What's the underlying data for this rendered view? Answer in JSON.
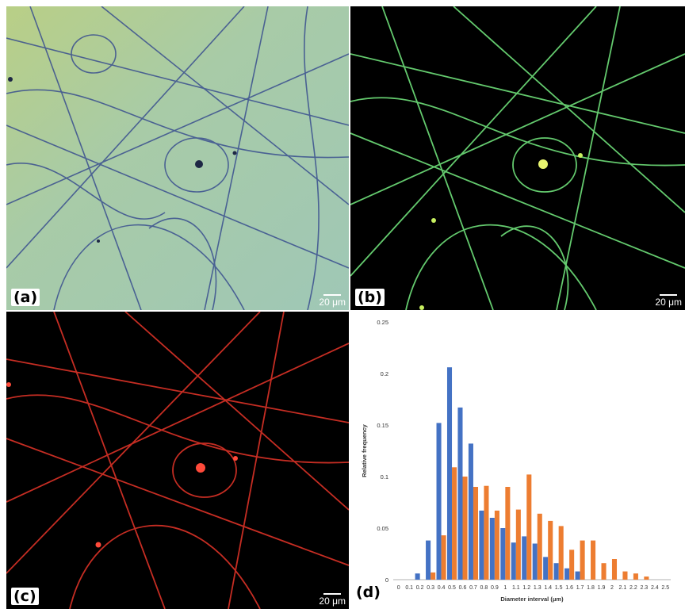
{
  "panels": {
    "a": {
      "label": "(a)",
      "scale_bar": "20 μm"
    },
    "b": {
      "label": "(b)",
      "scale_bar": "20 μm"
    },
    "c": {
      "label": "(c)",
      "scale_bar": "20 μm"
    },
    "d": {
      "label": "(d)"
    }
  },
  "colors": {
    "panel_a_background": "#a8c9a6",
    "panel_a_fiber": "#3a4f8f",
    "panel_b_fiber": "#6fe07a",
    "panel_c_fiber": "#e8362a",
    "series_blue": "#4472c4",
    "series_orange": "#ed7d31"
  },
  "chart_data": {
    "type": "bar",
    "xlabel": "Diameter interval (μm)",
    "ylabel": "Relative frequency",
    "ylim": [
      0,
      0.25
    ],
    "yticks": [
      "0",
      "0.05",
      "0.1",
      "0.15",
      "0.2",
      "0.25"
    ],
    "grid": false,
    "legend": "none",
    "categories": [
      "0",
      "0.1",
      "0.2",
      "0.3",
      "0.4",
      "0.5",
      "0.6",
      "0.7",
      "0.8",
      "0.9",
      "1",
      "1.1",
      "1.2",
      "1.3",
      "1.4",
      "1.5",
      "1.6",
      "1.7",
      "1.8",
      "1.9",
      "2",
      "2.1",
      "2.2",
      "2.3",
      "2.4",
      "2.5"
    ],
    "series": [
      {
        "color": "#4472c4",
        "values": [
          0,
          0,
          0.006,
          0.038,
          0.152,
          0.206,
          0.167,
          0.132,
          0.067,
          0.06,
          0.05,
          0.036,
          0.042,
          0.035,
          0.022,
          0.016,
          0.011,
          0.008,
          0,
          0,
          0,
          0,
          0,
          0,
          0,
          0
        ]
      },
      {
        "color": "#ed7d31",
        "values": [
          0,
          0,
          0,
          0.007,
          0.043,
          0.109,
          0.1,
          0.09,
          0.091,
          0.067,
          0.09,
          0.068,
          0.102,
          0.064,
          0.057,
          0.052,
          0.029,
          0.038,
          0.038,
          0.016,
          0.02,
          0.008,
          0.006,
          0.003,
          0,
          0
        ]
      }
    ]
  }
}
